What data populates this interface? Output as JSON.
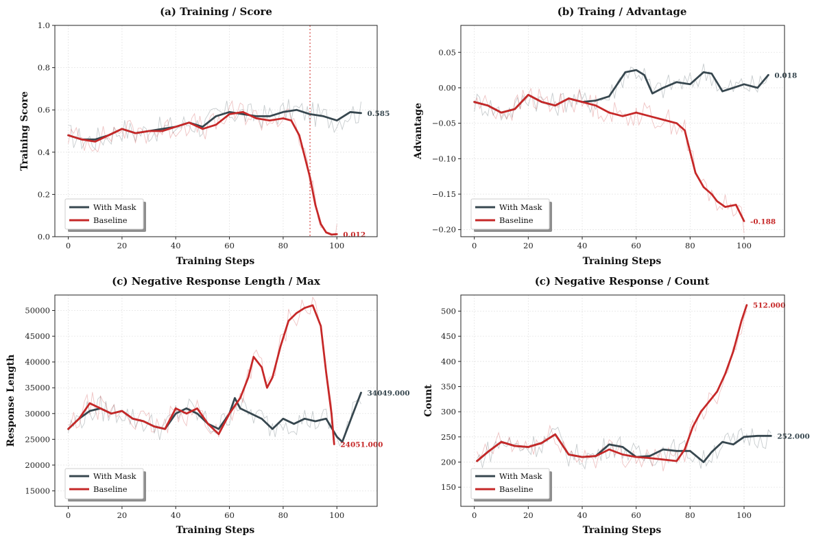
{
  "colors": {
    "mask": "#37474f",
    "baseline": "#c62828"
  },
  "chart_data": [
    {
      "type": "line",
      "title": "(a) Training / Score",
      "xlabel": "Training Steps",
      "ylabel": "Training Score",
      "xlim": [
        -5,
        115
      ],
      "ylim": [
        0,
        1.0
      ],
      "xticks": [
        0,
        20,
        40,
        60,
        80,
        100
      ],
      "yticks": [
        0.0,
        0.2,
        0.4,
        0.6,
        0.8,
        1.0
      ],
      "ytick_labels": [
        "0.0",
        "0.2",
        "0.4",
        "0.6",
        "0.8",
        "1.0"
      ],
      "legend": [
        "With Mask",
        "Baseline"
      ],
      "vline": 90,
      "series": [
        {
          "name": "With Mask",
          "color_key": "mask",
          "end_label": "0.585",
          "points": [
            [
              0,
              0.48
            ],
            [
              5,
              0.46
            ],
            [
              10,
              0.46
            ],
            [
              15,
              0.48
            ],
            [
              20,
              0.51
            ],
            [
              25,
              0.49
            ],
            [
              30,
              0.5
            ],
            [
              35,
              0.51
            ],
            [
              40,
              0.52
            ],
            [
              45,
              0.54
            ],
            [
              50,
              0.52
            ],
            [
              55,
              0.57
            ],
            [
              60,
              0.59
            ],
            [
              65,
              0.58
            ],
            [
              70,
              0.57
            ],
            [
              75,
              0.57
            ],
            [
              80,
              0.59
            ],
            [
              85,
              0.6
            ],
            [
              90,
              0.58
            ],
            [
              95,
              0.57
            ],
            [
              100,
              0.55
            ],
            [
              105,
              0.59
            ],
            [
              109,
              0.585
            ]
          ]
        },
        {
          "name": "Baseline",
          "color_key": "baseline",
          "end_label": "0.012",
          "points": [
            [
              0,
              0.48
            ],
            [
              5,
              0.46
            ],
            [
              10,
              0.45
            ],
            [
              15,
              0.48
            ],
            [
              20,
              0.51
            ],
            [
              25,
              0.49
            ],
            [
              30,
              0.5
            ],
            [
              35,
              0.5
            ],
            [
              40,
              0.52
            ],
            [
              45,
              0.54
            ],
            [
              50,
              0.51
            ],
            [
              55,
              0.53
            ],
            [
              60,
              0.58
            ],
            [
              65,
              0.59
            ],
            [
              70,
              0.56
            ],
            [
              75,
              0.55
            ],
            [
              80,
              0.56
            ],
            [
              83,
              0.55
            ],
            [
              86,
              0.48
            ],
            [
              88,
              0.38
            ],
            [
              90,
              0.28
            ],
            [
              92,
              0.15
            ],
            [
              94,
              0.06
            ],
            [
              96,
              0.02
            ],
            [
              98,
              0.01
            ],
            [
              100,
              0.012
            ]
          ]
        }
      ]
    },
    {
      "type": "line",
      "title": "(b) Traing / Advantage",
      "xlabel": "Training Steps",
      "ylabel": "Advantage",
      "xlim": [
        -5,
        115
      ],
      "ylim": [
        -0.21,
        0.088
      ],
      "xticks": [
        0,
        20,
        40,
        60,
        80,
        100
      ],
      "yticks": [
        0.05,
        0.0,
        -0.05,
        -0.1,
        -0.15,
        -0.2
      ],
      "ytick_labels": [
        "0.05",
        "0.00",
        "−0.05",
        "−0.10",
        "−0.15",
        "−0.20"
      ],
      "legend": [
        "With Mask",
        "Baseline"
      ],
      "series": [
        {
          "name": "With Mask",
          "color_key": "mask",
          "end_label": "0.018",
          "points": [
            [
              0,
              -0.02
            ],
            [
              5,
              -0.025
            ],
            [
              10,
              -0.035
            ],
            [
              15,
              -0.03
            ],
            [
              20,
              -0.01
            ],
            [
              25,
              -0.02
            ],
            [
              30,
              -0.025
            ],
            [
              35,
              -0.015
            ],
            [
              40,
              -0.02
            ],
            [
              45,
              -0.018
            ],
            [
              50,
              -0.012
            ],
            [
              53,
              0.005
            ],
            [
              56,
              0.022
            ],
            [
              60,
              0.025
            ],
            [
              63,
              0.018
            ],
            [
              66,
              -0.008
            ],
            [
              70,
              0.0
            ],
            [
              75,
              0.008
            ],
            [
              80,
              0.005
            ],
            [
              85,
              0.022
            ],
            [
              88,
              0.02
            ],
            [
              92,
              -0.005
            ],
            [
              96,
              0.0
            ],
            [
              100,
              0.005
            ],
            [
              105,
              0.0
            ],
            [
              109,
              0.018
            ]
          ]
        },
        {
          "name": "Baseline",
          "color_key": "baseline",
          "end_label": "-0.188",
          "points": [
            [
              0,
              -0.02
            ],
            [
              5,
              -0.025
            ],
            [
              10,
              -0.035
            ],
            [
              15,
              -0.03
            ],
            [
              20,
              -0.01
            ],
            [
              25,
              -0.02
            ],
            [
              30,
              -0.025
            ],
            [
              35,
              -0.015
            ],
            [
              40,
              -0.02
            ],
            [
              45,
              -0.025
            ],
            [
              50,
              -0.035
            ],
            [
              55,
              -0.04
            ],
            [
              60,
              -0.035
            ],
            [
              65,
              -0.04
            ],
            [
              70,
              -0.045
            ],
            [
              75,
              -0.05
            ],
            [
              78,
              -0.06
            ],
            [
              80,
              -0.09
            ],
            [
              82,
              -0.12
            ],
            [
              85,
              -0.14
            ],
            [
              88,
              -0.15
            ],
            [
              90,
              -0.16
            ],
            [
              93,
              -0.168
            ],
            [
              97,
              -0.165
            ],
            [
              100,
              -0.188
            ]
          ]
        }
      ]
    },
    {
      "type": "line",
      "title": "(c) Negative Response Length / Max",
      "xlabel": "Training Steps",
      "ylabel": "Response Length",
      "xlim": [
        -5,
        115
      ],
      "ylim": [
        12000,
        53000
      ],
      "xticks": [
        0,
        20,
        40,
        60,
        80,
        100
      ],
      "yticks": [
        15000,
        20000,
        25000,
        30000,
        35000,
        40000,
        45000,
        50000
      ],
      "ytick_labels": [
        "15000",
        "20000",
        "25000",
        "30000",
        "35000",
        "40000",
        "45000",
        "50000"
      ],
      "legend": [
        "With Mask",
        "Baseline"
      ],
      "series": [
        {
          "name": "With Mask",
          "color_key": "mask",
          "end_label": "34049.000",
          "points": [
            [
              0,
              27000
            ],
            [
              4,
              29000
            ],
            [
              8,
              30500
            ],
            [
              12,
              31000
            ],
            [
              16,
              30000
            ],
            [
              20,
              30500
            ],
            [
              24,
              29000
            ],
            [
              28,
              28500
            ],
            [
              32,
              27500
            ],
            [
              36,
              27000
            ],
            [
              40,
              30000
            ],
            [
              44,
              31000
            ],
            [
              48,
              30000
            ],
            [
              52,
              28000
            ],
            [
              56,
              27000
            ],
            [
              60,
              30000
            ],
            [
              62,
              33000
            ],
            [
              64,
              31000
            ],
            [
              68,
              30000
            ],
            [
              72,
              29000
            ],
            [
              76,
              27000
            ],
            [
              80,
              29000
            ],
            [
              84,
              28000
            ],
            [
              88,
              29000
            ],
            [
              92,
              28500
            ],
            [
              96,
              29000
            ],
            [
              100,
              25500
            ],
            [
              102,
              24500
            ],
            [
              106,
              30000
            ],
            [
              109,
              34049
            ]
          ]
        },
        {
          "name": "Baseline",
          "color_key": "baseline",
          "end_label": "24051.000",
          "points": [
            [
              0,
              27000
            ],
            [
              4,
              29000
            ],
            [
              8,
              32000
            ],
            [
              12,
              31000
            ],
            [
              16,
              30000
            ],
            [
              20,
              30500
            ],
            [
              24,
              29000
            ],
            [
              28,
              28500
            ],
            [
              32,
              27500
            ],
            [
              36,
              27000
            ],
            [
              40,
              31000
            ],
            [
              44,
              30000
            ],
            [
              48,
              31000
            ],
            [
              52,
              28000
            ],
            [
              56,
              26000
            ],
            [
              60,
              30000
            ],
            [
              64,
              33000
            ],
            [
              67,
              37000
            ],
            [
              69,
              41000
            ],
            [
              72,
              39000
            ],
            [
              74,
              35000
            ],
            [
              76,
              37000
            ],
            [
              79,
              43000
            ],
            [
              82,
              48000
            ],
            [
              85,
              49500
            ],
            [
              88,
              50500
            ],
            [
              91,
              51000
            ],
            [
              94,
              47000
            ],
            [
              96,
              38000
            ],
            [
              98,
              30000
            ],
            [
              99,
              24051
            ]
          ]
        }
      ]
    },
    {
      "type": "line",
      "title": "(c) Negative Response / Count",
      "xlabel": "Training Steps",
      "ylabel": "Count",
      "xlim": [
        -5,
        115
      ],
      "ylim": [
        112,
        532
      ],
      "xticks": [
        0,
        20,
        40,
        60,
        80,
        100
      ],
      "yticks": [
        150,
        200,
        250,
        300,
        350,
        400,
        450,
        500
      ],
      "ytick_labels": [
        "150",
        "200",
        "250",
        "300",
        "350",
        "400",
        "450",
        "500"
      ],
      "legend": [
        "With Mask",
        "Baseline"
      ],
      "series": [
        {
          "name": "With Mask",
          "color_key": "mask",
          "end_label": "252.000",
          "points": [
            [
              1,
              202
            ],
            [
              5,
              220
            ],
            [
              10,
              240
            ],
            [
              15,
              232
            ],
            [
              20,
              230
            ],
            [
              25,
              238
            ],
            [
              30,
              255
            ],
            [
              35,
              215
            ],
            [
              40,
              210
            ],
            [
              45,
              212
            ],
            [
              50,
              235
            ],
            [
              55,
              230
            ],
            [
              60,
              210
            ],
            [
              65,
              212
            ],
            [
              70,
              225
            ],
            [
              75,
              222
            ],
            [
              80,
              222
            ],
            [
              85,
              200
            ],
            [
              88,
              220
            ],
            [
              92,
              240
            ],
            [
              96,
              235
            ],
            [
              100,
              250
            ],
            [
              105,
              252
            ],
            [
              110,
              252
            ]
          ]
        },
        {
          "name": "Baseline",
          "color_key": "baseline",
          "end_label": "512.000",
          "points": [
            [
              1,
              202
            ],
            [
              5,
              220
            ],
            [
              10,
              240
            ],
            [
              15,
              232
            ],
            [
              20,
              230
            ],
            [
              25,
              238
            ],
            [
              30,
              255
            ],
            [
              35,
              215
            ],
            [
              40,
              210
            ],
            [
              45,
              212
            ],
            [
              50,
              225
            ],
            [
              55,
              215
            ],
            [
              60,
              210
            ],
            [
              65,
              208
            ],
            [
              70,
              205
            ],
            [
              75,
              202
            ],
            [
              78,
              225
            ],
            [
              81,
              270
            ],
            [
              84,
              300
            ],
            [
              87,
              320
            ],
            [
              90,
              340
            ],
            [
              93,
              375
            ],
            [
              96,
              420
            ],
            [
              99,
              480
            ],
            [
              101,
              512
            ]
          ]
        }
      ]
    }
  ]
}
